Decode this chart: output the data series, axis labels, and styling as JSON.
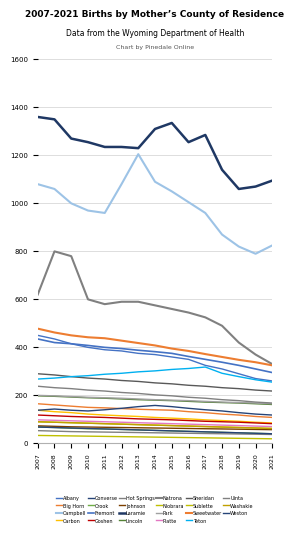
{
  "title": "2007-2021 Births by Mother’s County of Residence",
  "subtitle": "Data from the Wyoming Department of Health",
  "credit": "Chart by Pinedale Online",
  "years": [
    2007,
    2008,
    2009,
    2010,
    2011,
    2012,
    2013,
    2014,
    2015,
    2016,
    2017,
    2018,
    2019,
    2020,
    2021
  ],
  "series": [
    {
      "name": "Albany",
      "color": "#4472c4",
      "lw": 1.0,
      "vals": [
        450,
        435,
        415,
        400,
        390,
        385,
        375,
        370,
        360,
        350,
        325,
        310,
        290,
        270,
        260
      ]
    },
    {
      "name": "Big Horn",
      "color": "#ed7d31",
      "lw": 1.0,
      "vals": [
        165,
        160,
        155,
        150,
        148,
        145,
        142,
        140,
        138,
        132,
        128,
        122,
        118,
        112,
        108
      ]
    },
    {
      "name": "Campbell",
      "color": "#9dc3e6",
      "lw": 1.5,
      "vals": [
        1080,
        1060,
        1000,
        970,
        960,
        1080,
        1205,
        1090,
        1050,
        1005,
        960,
        870,
        820,
        790,
        825
      ]
    },
    {
      "name": "Carbon",
      "color": "#ffc000",
      "lw": 1.0,
      "vals": [
        138,
        132,
        128,
        122,
        118,
        115,
        112,
        108,
        105,
        102,
        98,
        95,
        92,
        88,
        85
      ]
    },
    {
      "name": "Converse",
      "color": "#264478",
      "lw": 1.0,
      "vals": [
        138,
        143,
        138,
        135,
        140,
        146,
        153,
        158,
        153,
        146,
        140,
        135,
        128,
        122,
        118
      ]
    },
    {
      "name": "Crook",
      "color": "#70ad47",
      "lw": 1.0,
      "vals": [
        68,
        66,
        63,
        61,
        60,
        58,
        56,
        54,
        52,
        50,
        48,
        46,
        44,
        42,
        40
      ]
    },
    {
      "name": "Fremont",
      "color": "#4472c4",
      "lw": 1.2,
      "vals": [
        435,
        420,
        415,
        408,
        400,
        395,
        388,
        382,
        375,
        362,
        350,
        338,
        325,
        310,
        295
      ]
    },
    {
      "name": "Goshen",
      "color": "#c00000",
      "lw": 1.0,
      "vals": [
        118,
        115,
        112,
        110,
        108,
        105,
        102,
        100,
        98,
        95,
        92,
        90,
        88,
        85,
        82
      ]
    },
    {
      "name": "Hot Springs",
      "color": "#808080",
      "lw": 1.0,
      "vals": [
        53,
        51,
        49,
        48,
        47,
        46,
        45,
        44,
        43,
        42,
        41,
        40,
        39,
        38,
        37
      ]
    },
    {
      "name": "Johnson",
      "color": "#7b3f00",
      "lw": 1.0,
      "vals": [
        73,
        71,
        69,
        68,
        67,
        66,
        65,
        64,
        63,
        62,
        61,
        60,
        59,
        58,
        57
      ]
    },
    {
      "name": "Laramie",
      "color": "#1f3864",
      "lw": 1.8,
      "vals": [
        1360,
        1350,
        1270,
        1255,
        1235,
        1235,
        1230,
        1310,
        1335,
        1255,
        1285,
        1140,
        1060,
        1070,
        1095
      ]
    },
    {
      "name": "Lincoln",
      "color": "#548235",
      "lw": 1.0,
      "vals": [
        198,
        196,
        193,
        190,
        188,
        185,
        182,
        180,
        178,
        175,
        172,
        170,
        168,
        165,
        162
      ]
    },
    {
      "name": "Natrona",
      "color": "#808080",
      "lw": 1.5,
      "vals": [
        620,
        800,
        780,
        600,
        580,
        590,
        590,
        575,
        560,
        545,
        525,
        490,
        420,
        370,
        330
      ]
    },
    {
      "name": "Niobrara",
      "color": "#bfbf00",
      "lw": 1.0,
      "vals": [
        33,
        32,
        31,
        30,
        29,
        28,
        27,
        26,
        25,
        24,
        23,
        22,
        21,
        20,
        19
      ]
    },
    {
      "name": "Park",
      "color": "#a0a0a0",
      "lw": 1.0,
      "vals": [
        200,
        198,
        195,
        192,
        190,
        188,
        185,
        182,
        180,
        178,
        175,
        172,
        170,
        168,
        165
      ]
    },
    {
      "name": "Platte",
      "color": "#e377c2",
      "lw": 1.0,
      "vals": [
        98,
        96,
        94,
        92,
        90,
        88,
        86,
        84,
        82,
        80,
        78,
        76,
        74,
        72,
        70
      ]
    },
    {
      "name": "Sheridan",
      "color": "#595959",
      "lw": 1.0,
      "vals": [
        290,
        285,
        278,
        272,
        268,
        262,
        258,
        252,
        248,
        242,
        238,
        232,
        228,
        222,
        218
      ]
    },
    {
      "name": "Sublette",
      "color": "#bfbf00",
      "lw": 1.0,
      "vals": [
        90,
        88,
        86,
        84,
        82,
        80,
        78,
        76,
        74,
        72,
        70,
        68,
        66,
        64,
        62
      ]
    },
    {
      "name": "Sweetwater",
      "color": "#ed7d31",
      "lw": 1.5,
      "vals": [
        478,
        462,
        450,
        442,
        438,
        428,
        418,
        408,
        395,
        385,
        372,
        360,
        348,
        338,
        325
      ]
    },
    {
      "name": "Teton",
      "color": "#00b0f0",
      "lw": 1.0,
      "vals": [
        268,
        272,
        278,
        282,
        288,
        292,
        298,
        302,
        308,
        312,
        318,
        292,
        278,
        265,
        255
      ]
    },
    {
      "name": "Uinta",
      "color": "#808080",
      "lw": 1.0,
      "vals": [
        238,
        232,
        228,
        222,
        218,
        212,
        208,
        202,
        198,
        192,
        188,
        182,
        178,
        172,
        168
      ]
    },
    {
      "name": "Washakie",
      "color": "#c0a000",
      "lw": 1.0,
      "vals": [
        90,
        88,
        86,
        84,
        82,
        80,
        78,
        76,
        74,
        72,
        70,
        68,
        66,
        64,
        62
      ]
    },
    {
      "name": "Weston",
      "color": "#264478",
      "lw": 1.0,
      "vals": [
        68,
        66,
        64,
        62,
        60,
        58,
        56,
        54,
        52,
        50,
        48,
        46,
        44,
        42,
        40
      ]
    }
  ],
  "ylim": [
    0,
    1600
  ],
  "yticks": [
    0,
    200,
    400,
    600,
    800,
    1000,
    1200,
    1400,
    1600
  ],
  "legend_ncol": 6,
  "legend_fontsize": 3.5
}
